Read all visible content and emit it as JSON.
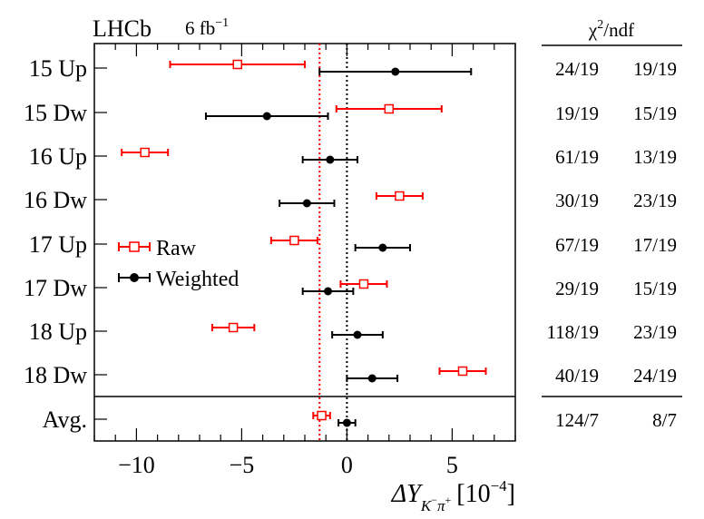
{
  "chart_data": {
    "type": "scatter",
    "title": "",
    "experiment": "LHCb",
    "luminosity": "6 fb",
    "luminosity_exp": "−1",
    "xlabel": "ΔY",
    "xlabel_sub": "K",
    "xlabel_sub_sup1": "−",
    "xlabel_sub_pi": "π",
    "xlabel_sub_sup2": "+",
    "xlabel_unit": "[10",
    "xlabel_unit_exp": "−4",
    "xlabel_unit_close": "]",
    "xlim": [
      -12,
      8
    ],
    "xticks": [
      -10,
      -5,
      0,
      5
    ],
    "xtick_labels": [
      "−10",
      "−5",
      "0",
      "5"
    ],
    "categories": [
      "15 Up",
      "15 Dw",
      "16 Up",
      "16 Dw",
      "17 Up",
      "17 Dw",
      "18 Up",
      "18 Dw",
      "Avg."
    ],
    "chi2_header": "χ",
    "chi2_header_exp": "2",
    "chi2_header_rest": "/ndf",
    "series": [
      {
        "name": "Raw",
        "color": "#ff0000",
        "marker": "open-square",
        "values": [
          -5.2,
          2.0,
          -9.6,
          2.5,
          -2.5,
          0.8,
          -5.4,
          5.5,
          -1.2
        ],
        "errors": [
          3.2,
          2.5,
          1.1,
          1.1,
          1.1,
          1.1,
          1.0,
          1.1,
          0.4
        ],
        "chi2": [
          "24/19",
          "19/19",
          "61/19",
          "30/19",
          "67/19",
          "29/19",
          "118/19",
          "40/19",
          "124/7"
        ]
      },
      {
        "name": "Weighted",
        "color": "#000000",
        "marker": "filled-circle",
        "values": [
          2.3,
          -3.8,
          -0.8,
          -1.9,
          1.7,
          -0.9,
          0.5,
          1.2,
          0.0
        ],
        "errors": [
          3.6,
          2.9,
          1.3,
          1.3,
          1.3,
          1.2,
          1.2,
          1.2,
          0.4
        ],
        "chi2": [
          "19/19",
          "15/19",
          "13/19",
          "23/19",
          "17/19",
          "15/19",
          "23/19",
          "24/19",
          "8/7"
        ]
      }
    ],
    "reference_lines": [
      {
        "value": -1.3,
        "color": "#ff0000",
        "style": "dotted"
      },
      {
        "value": 0.0,
        "color": "#000000",
        "style": "dotted"
      }
    ],
    "legend": {
      "placement": "middle-left"
    }
  }
}
